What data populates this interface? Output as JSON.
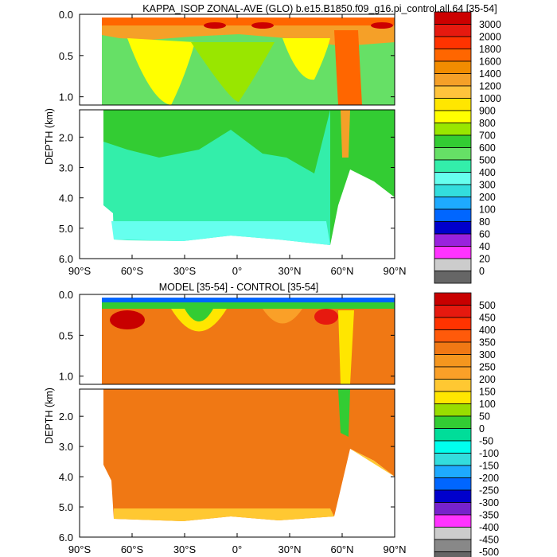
{
  "chart_data": [
    {
      "type": "contour",
      "title": "KAPPA_ISOP ZONAL-AVE (GLO) b.e15.B1850.f09_g16.pi_control.all.64 [35-54]",
      "ylabel": "DEPTH (km)",
      "xlabel": "",
      "x_tick_labels": [
        "90°S",
        "60°S",
        "30°S",
        "0°",
        "30°N",
        "60°N",
        "90°N"
      ],
      "y_upper_ticks": [
        "0.0",
        "0.5",
        "1.0"
      ],
      "y_lower_ticks": [
        "2.0",
        "3.0",
        "4.0",
        "5.0",
        "6.0"
      ],
      "xlim": [
        -90,
        90
      ],
      "ylim_km": [
        0,
        6
      ],
      "colorbar_levels": [
        "3000",
        "2000",
        "1800",
        "1600",
        "1400",
        "1200",
        "1000",
        "900",
        "800",
        "700",
        "600",
        "500",
        "400",
        "300",
        "200",
        "100",
        "80",
        "60",
        "40",
        "20",
        "0"
      ],
      "colorbar_colors": [
        "#cc0000",
        "#e6190f",
        "#ff3300",
        "#ff6600",
        "#f28c00",
        "#f5a028",
        "#ffc33c",
        "#ffe600",
        "#ffff00",
        "#99e600",
        "#33cc33",
        "#66e066",
        "#33eeaa",
        "#66ffee",
        "#33dddd",
        "#1eaaff",
        "#0066ff",
        "#0000cc",
        "#9922dd",
        "#ff33ff",
        "#cccccc",
        "#666666"
      ]
    },
    {
      "type": "contour",
      "title": "MODEL [35-54] - CONTROL [35-54]",
      "ylabel": "DEPTH (km)",
      "xlabel": "",
      "x_tick_labels": [
        "90°S",
        "60°S",
        "30°S",
        "0°",
        "30°N",
        "60°N",
        "90°N"
      ],
      "y_upper_ticks": [
        "0.0",
        "0.5",
        "1.0"
      ],
      "y_lower_ticks": [
        "2.0",
        "3.0",
        "4.0",
        "5.0",
        "6.0"
      ],
      "xlim": [
        -90,
        90
      ],
      "ylim_km": [
        0,
        6
      ],
      "colorbar_levels": [
        "500",
        "450",
        "400",
        "350",
        "300",
        "250",
        "200",
        "150",
        "100",
        "50",
        "0",
        "-50",
        "-100",
        "-150",
        "-200",
        "-250",
        "-300",
        "-350",
        "-400",
        "-450",
        "-500"
      ],
      "colorbar_colors": [
        "#c80000",
        "#e6190f",
        "#ff3300",
        "#ff5a0a",
        "#f07814",
        "#f5961e",
        "#faa028",
        "#ffc832",
        "#ffe600",
        "#99dd00",
        "#33cc33",
        "#00dd99",
        "#00ffee",
        "#33dddd",
        "#1eaaff",
        "#0066ff",
        "#0000cc",
        "#7722cc",
        "#ff33ff",
        "#cccccc",
        "#888888",
        "#666666"
      ]
    }
  ]
}
